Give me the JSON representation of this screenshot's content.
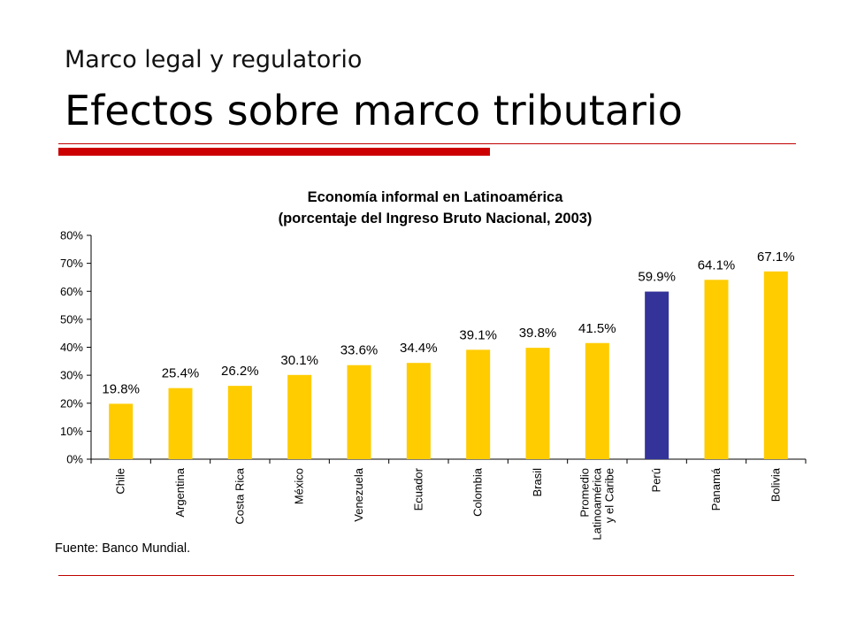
{
  "header": {
    "subtitle": "Marco legal y regulatorio",
    "title": "Efectos sobre marco tributario"
  },
  "source_note": "Fuente: Banco Mundial.",
  "colors": {
    "accent": "#cc0000",
    "bar_default": "#ffcc00",
    "bar_highlight": "#333399"
  },
  "chart_data": {
    "type": "bar",
    "title_lines": [
      "Economía informal en Latinoamérica",
      "(porcentaje del Ingreso Bruto Nacional, 2003)"
    ],
    "categories": [
      [
        "Chile"
      ],
      [
        "Argentina"
      ],
      [
        "Costa Rica"
      ],
      [
        "México"
      ],
      [
        "Venezuela"
      ],
      [
        "Ecuador"
      ],
      [
        "Colombia"
      ],
      [
        "Brasil"
      ],
      [
        "Promedio",
        "Latinoamérica",
        "y el Caribe"
      ],
      [
        "Perú"
      ],
      [
        "Panamá"
      ],
      [
        "Bolivia"
      ]
    ],
    "values": [
      19.8,
      25.4,
      26.2,
      30.1,
      33.6,
      34.4,
      39.1,
      39.8,
      41.5,
      59.9,
      64.1,
      67.1
    ],
    "value_labels": [
      "19.8%",
      "25.4%",
      "26.2%",
      "30.1%",
      "33.6%",
      "34.4%",
      "39.1%",
      "39.8%",
      "41.5%",
      "59.9%",
      "64.1%",
      "67.1%"
    ],
    "highlight_index": 9,
    "yticks": [
      "0%",
      "10%",
      "20%",
      "30%",
      "40%",
      "50%",
      "60%",
      "70%",
      "80%"
    ],
    "ylim": [
      0,
      80
    ],
    "grid": false,
    "legend": "none",
    "xlabel": "",
    "ylabel": ""
  }
}
